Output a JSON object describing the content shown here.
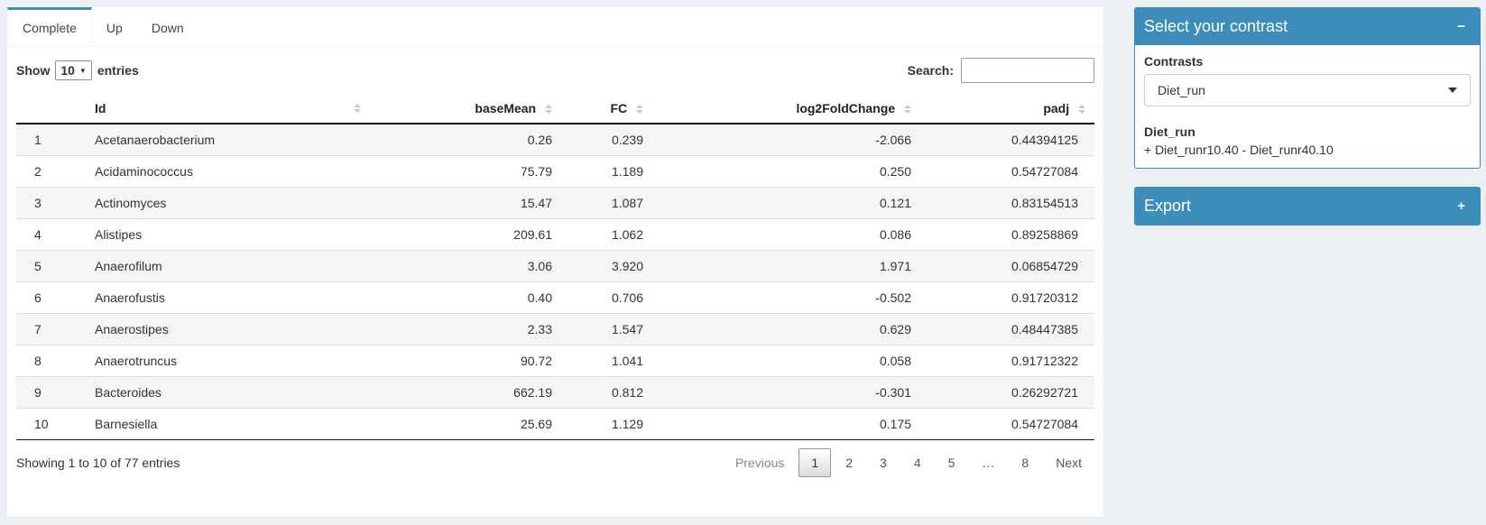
{
  "colors": {
    "primary": "#3c8dbc",
    "page_bg": "#ecf0f5"
  },
  "tabs": [
    {
      "label": "Complete",
      "active": true
    },
    {
      "label": "Up",
      "active": false
    },
    {
      "label": "Down",
      "active": false
    }
  ],
  "controls": {
    "show_label": "Show",
    "page_length": "10",
    "entries_label": "entries",
    "search_label": "Search:",
    "search_value": ""
  },
  "table": {
    "headers": [
      "",
      "Id",
      "baseMean",
      "FC",
      "log2FoldChange",
      "padj"
    ],
    "rows": [
      {
        "num": "1",
        "id": "Acetanaerobacterium",
        "baseMean": "0.26",
        "fc": "0.239",
        "log2fc": "-2.066",
        "padj": "0.44394125"
      },
      {
        "num": "2",
        "id": "Acidaminococcus",
        "baseMean": "75.79",
        "fc": "1.189",
        "log2fc": "0.250",
        "padj": "0.54727084"
      },
      {
        "num": "3",
        "id": "Actinomyces",
        "baseMean": "15.47",
        "fc": "1.087",
        "log2fc": "0.121",
        "padj": "0.83154513"
      },
      {
        "num": "4",
        "id": "Alistipes",
        "baseMean": "209.61",
        "fc": "1.062",
        "log2fc": "0.086",
        "padj": "0.89258869"
      },
      {
        "num": "5",
        "id": "Anaerofilum",
        "baseMean": "3.06",
        "fc": "3.920",
        "log2fc": "1.971",
        "padj": "0.06854729"
      },
      {
        "num": "6",
        "id": "Anaerofustis",
        "baseMean": "0.40",
        "fc": "0.706",
        "log2fc": "-0.502",
        "padj": "0.91720312"
      },
      {
        "num": "7",
        "id": "Anaerostipes",
        "baseMean": "2.33",
        "fc": "1.547",
        "log2fc": "0.629",
        "padj": "0.48447385"
      },
      {
        "num": "8",
        "id": "Anaerotruncus",
        "baseMean": "90.72",
        "fc": "1.041",
        "log2fc": "0.058",
        "padj": "0.91712322"
      },
      {
        "num": "9",
        "id": "Bacteroides",
        "baseMean": "662.19",
        "fc": "0.812",
        "log2fc": "-0.301",
        "padj": "0.26292721"
      },
      {
        "num": "10",
        "id": "Barnesiella",
        "baseMean": "25.69",
        "fc": "1.129",
        "log2fc": "0.175",
        "padj": "0.54727084"
      }
    ]
  },
  "footer": {
    "info": "Showing 1 to 10 of 77 entries",
    "previous_label": "Previous",
    "pages": [
      "1",
      "2",
      "3",
      "4",
      "5",
      "…",
      "8"
    ],
    "active_page": "1",
    "next_label": "Next"
  },
  "contrast_panel": {
    "title": "Select your contrast",
    "collapse_icon": "−",
    "contrasts_label": "Contrasts",
    "selected_contrast": "Diet_run",
    "detail_title": "Diet_run",
    "detail_formula": "+ Diet_runr10.40 - Diet_runr40.10"
  },
  "export_panel": {
    "title": "Export",
    "expand_icon": "+"
  }
}
